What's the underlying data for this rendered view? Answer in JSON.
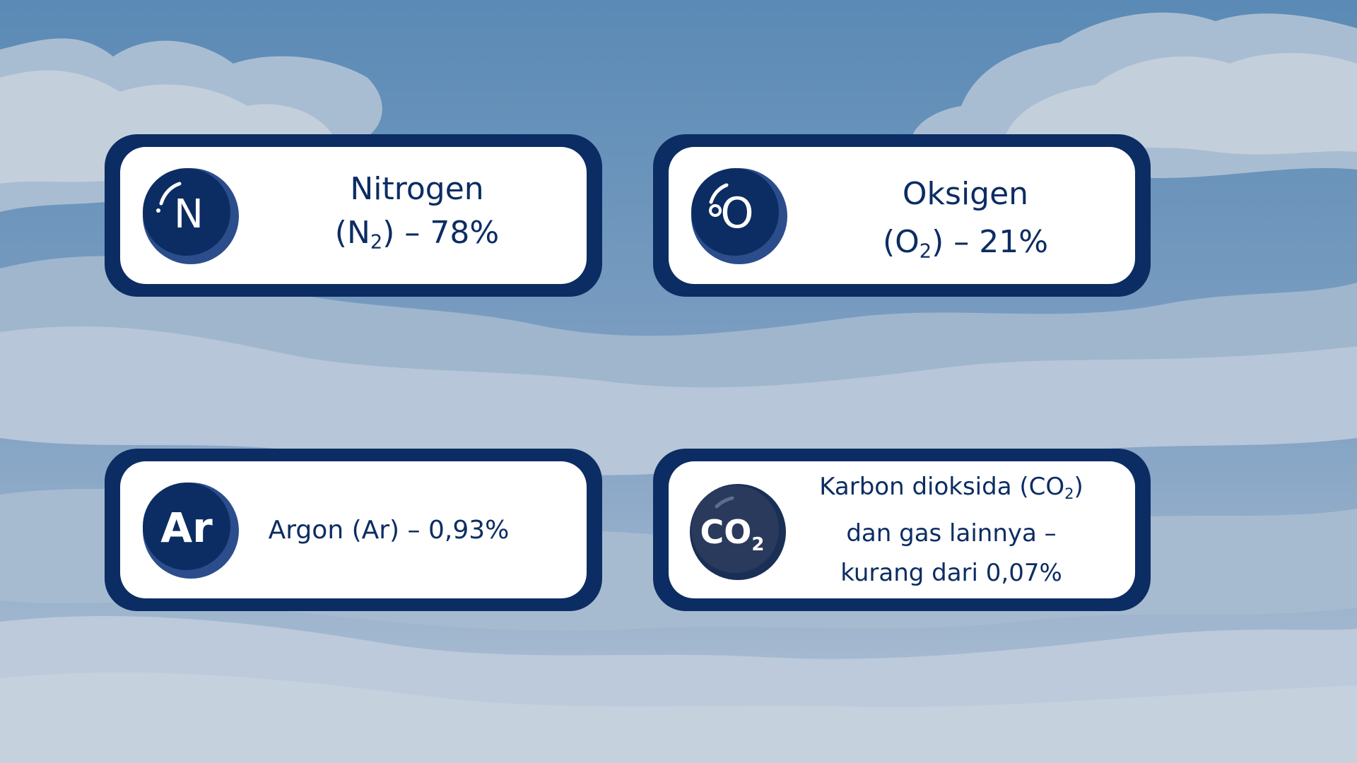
{
  "palette": {
    "card_border": "#0c2d63",
    "card_fill": "#ffffff",
    "text": "#0c2d63",
    "sky_top": "#5a8ab5",
    "cloud_light": "#c4cfdc",
    "cloud_mid": "#a9bdd2"
  },
  "cards": [
    {
      "id": "nitrogen",
      "icon": "nitrogen-atom-icon",
      "badge_symbol": "N",
      "lines": [
        {
          "text": "Nitrogen"
        },
        {
          "pre": "(N",
          "sub": "2",
          "post": ") – 78%"
        }
      ]
    },
    {
      "id": "oxygen",
      "icon": "oxygen-atom-icon",
      "badge_symbol": "O",
      "lines": [
        {
          "text": "Oksigen"
        },
        {
          "pre": "(O",
          "sub": "2",
          "post": ") – 21%"
        }
      ]
    },
    {
      "id": "argon",
      "icon": "argon-atom-icon",
      "badge_symbol": "Ar",
      "lines": [
        {
          "text": "Argon (Ar) – 0,93%"
        }
      ]
    },
    {
      "id": "carbon-dioxide",
      "icon": "carbon-dioxide-molecule-icon",
      "badge_symbol": "CO",
      "badge_sub": "2",
      "lines": [
        {
          "pre": "Karbon dioksida (CO",
          "sub": "2",
          "post": ")"
        },
        {
          "text": "dan gas lainnya –"
        },
        {
          "text": "kurang dari 0,07%"
        }
      ]
    }
  ]
}
